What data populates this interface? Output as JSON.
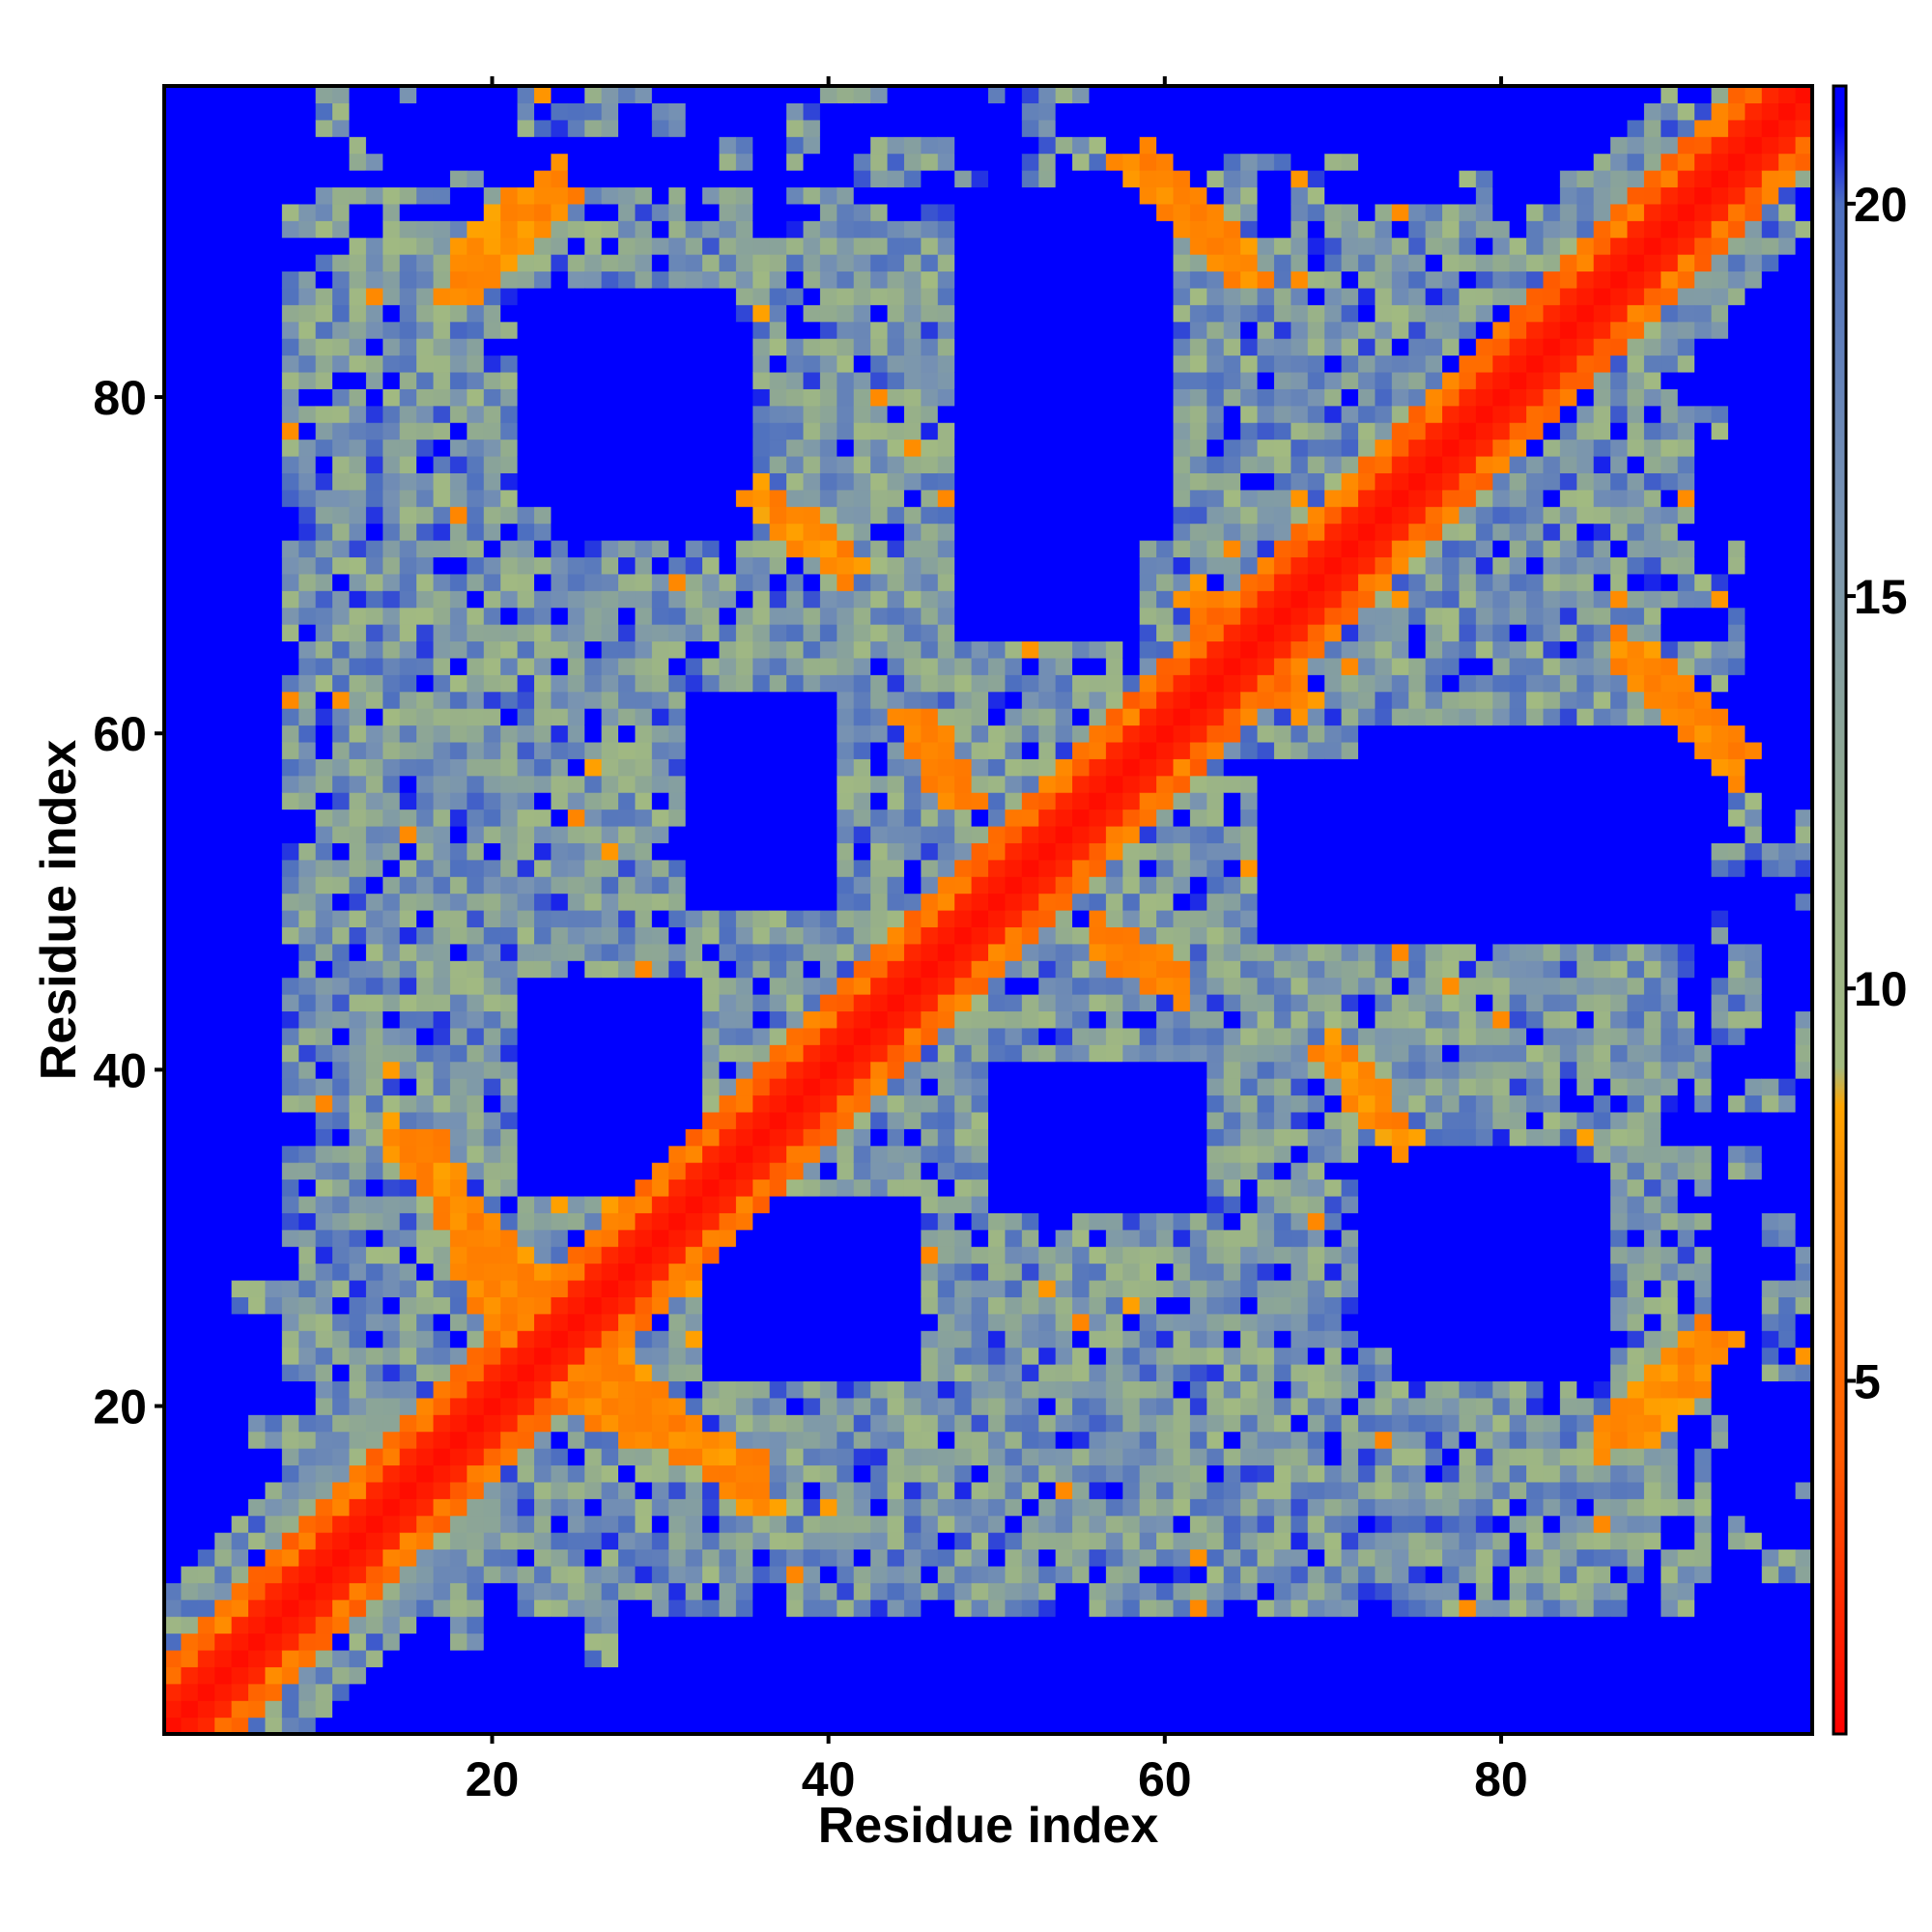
{
  "chart_data": {
    "type": "heatmap",
    "title": "",
    "xlabel": "Residue index",
    "ylabel": "Residue index",
    "n_residues": 98,
    "xlim": [
      0.5,
      98.5
    ],
    "ylim": [
      0.5,
      98.5
    ],
    "x_ticks": [
      20,
      40,
      60,
      80
    ],
    "y_ticks": [
      20,
      40,
      60,
      80
    ],
    "x_tick_labels": [
      "20",
      "40",
      "60",
      "80"
    ],
    "y_tick_labels": [
      "20",
      "40",
      "60",
      "80"
    ],
    "colorbar": {
      "range": [
        0.5,
        21.5
      ],
      "ticks": [
        5,
        10,
        15,
        20
      ],
      "tick_labels": [
        "5",
        "10",
        "15",
        "20"
      ],
      "stops": [
        {
          "value": 0.5,
          "color": "#ff0000"
        },
        {
          "value": 4.0,
          "color": "#ff5a00"
        },
        {
          "value": 7.5,
          "color": "#ff8c00"
        },
        {
          "value": 8.5,
          "color": "#ffa500"
        },
        {
          "value": 9.0,
          "color": "#a3bb80"
        },
        {
          "value": 12.0,
          "color": "#94ad8c"
        },
        {
          "value": 16.0,
          "color": "#7893b2"
        },
        {
          "value": 20.0,
          "color": "#4c6ec0"
        },
        {
          "value": 21.0,
          "color": "#0000ff"
        }
      ]
    },
    "values_description": "Pairwise residue distance map (symmetric); diagonal ~0, background (far) saturates blue.",
    "diagonal_value": 1,
    "near_diagonal_value": 4,
    "background_value": 21.5,
    "contact_features": [
      {
        "i_range": [
          14,
          24
        ],
        "j_range": [
          36,
          26
        ],
        "value": 6
      },
      {
        "i_range": [
          24,
          36
        ],
        "j_range": [
          21,
          16
        ],
        "value": 6
      },
      {
        "i_range": [
          18,
          24
        ],
        "j_range": [
          88,
          93
        ],
        "value": 6
      },
      {
        "i_range": [
          36,
          41
        ],
        "j_range": [
          74,
          70
        ],
        "value": 6
      },
      {
        "i_range": [
          59,
          65
        ],
        "j_range": [
          94,
          88
        ],
        "value": 6
      },
      {
        "i_range": [
          62,
          68
        ],
        "j_range": [
          68,
          62
        ],
        "value": 6
      },
      {
        "i_range": [
          87,
          94
        ],
        "j_range": [
          65,
          58
        ],
        "value": 6
      },
      {
        "i_range": [
          86,
          92
        ],
        "j_range": [
          18,
          24
        ],
        "value": 6
      },
      {
        "i_range": [
          70,
          74
        ],
        "j_range": [
          41,
          36
        ],
        "value": 6
      },
      {
        "i_range": [
          56,
          61
        ],
        "j_range": [
          48,
          45
        ],
        "value": 6
      }
    ],
    "empty_regions": [
      {
        "i_range": [
          22,
          34
        ],
        "j_range": [
          74,
          86
        ]
      },
      {
        "i_range": [
          50,
          60
        ],
        "j_range": [
          72,
          92
        ]
      },
      {
        "i_range": [
          66,
          90
        ],
        "j_range": [
          48,
          58
        ]
      },
      {
        "i_range": [
          33,
          42
        ],
        "j_range": [
          22,
          32
        ]
      },
      {
        "i_range": [
          72,
          84
        ],
        "j_range": [
          24,
          35
        ]
      },
      {
        "i_range": [
          22,
          32
        ],
        "j_range": [
          38,
          45
        ]
      },
      {
        "i_range": [
          50,
          62
        ],
        "j_range": [
          32,
          40
        ]
      }
    ],
    "legend": "none",
    "grid": false
  }
}
